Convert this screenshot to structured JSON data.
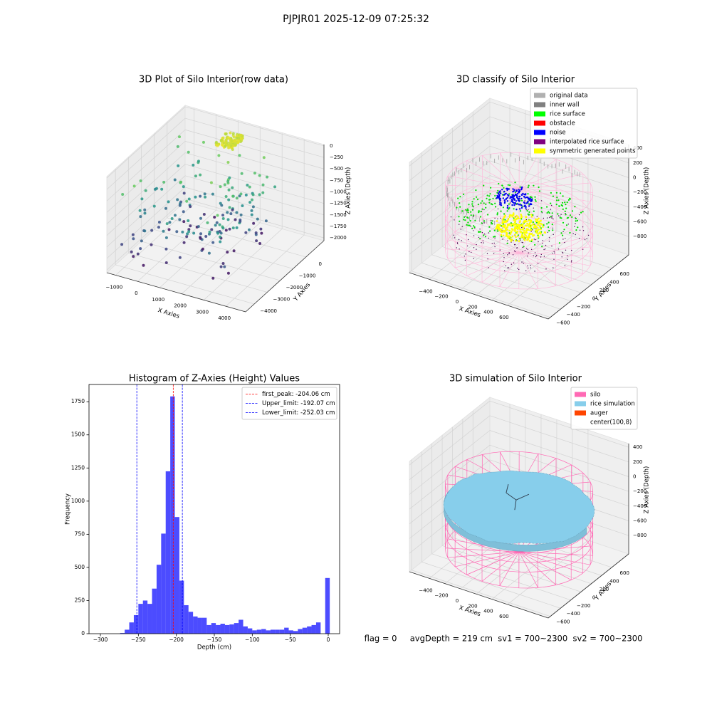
{
  "title": "PJPJR01 2025-12-09 07:25:32",
  "footer": "flag = 0     avgDepth = 219 cm  sv1 = 700~2300  sv2 = 700~2300",
  "chart_data": [
    {
      "type": "scatter3d",
      "title": "3D Plot of Silo Interior(row data)",
      "xlabel": "X Axies",
      "ylabel": "Y Axies",
      "zlabel": "Z Axies (Depth)",
      "xlim": [
        -1400,
        4900
      ],
      "ylim": [
        -4670,
        1390
      ],
      "zlim": [
        -2060,
        30
      ],
      "xticks": [
        {
          "value": -1000,
          "label": "−1000"
        },
        0,
        1000,
        2000,
        3000,
        4000
      ],
      "yticks": [
        {
          "value": -4000,
          "label": "−4000"
        },
        {
          "value": -3000,
          "label": "−3000"
        },
        {
          "value": -2000,
          "label": "−2000"
        },
        {
          "value": -1000,
          "label": "−1000"
        },
        0
      ],
      "zticks": [
        0,
        {
          "value": -250,
          "label": "−250"
        },
        {
          "value": -500,
          "label": "−500"
        },
        {
          "value": -750,
          "label": "−750"
        },
        {
          "value": -1000,
          "label": "−1000"
        },
        {
          "value": -1250,
          "label": "−1250"
        },
        {
          "value": -1500,
          "label": "−1500"
        },
        {
          "value": -1750,
          "label": "−1750"
        },
        {
          "value": -2000,
          "label": "−2000"
        }
      ]
    },
    {
      "type": "classified3d",
      "title": "3D classify of Silo Interior",
      "xlabel": "X Axies",
      "ylabel": "Y Axies",
      "zlabel": "Z Axies (Depth)",
      "xlim": [
        -655,
        1120
      ],
      "ylim": [
        -640,
        930
      ],
      "zlim": [
        -1050,
        450
      ],
      "xticks": [
        {
          "value": -400,
          "label": "−400"
        },
        {
          "value": -200,
          "label": "−200"
        },
        0,
        200,
        400,
        600
      ],
      "yticks": [
        {
          "value": -600,
          "label": "−600"
        },
        {
          "value": -400,
          "label": "−400"
        },
        {
          "value": -200,
          "label": "−200"
        },
        0,
        200,
        400,
        600
      ],
      "zticks": [
        {
          "value": -800,
          "label": "−800"
        },
        {
          "value": -600,
          "label": "−600"
        },
        {
          "value": -400,
          "label": "−400"
        },
        {
          "value": -200,
          "label": "−200"
        },
        0,
        200,
        400
      ],
      "legend_loc": "upper right",
      "legend": [
        {
          "name": "original data",
          "color": "#b0b0b0"
        },
        {
          "name": "inner wall",
          "color": "#808080"
        },
        {
          "name": "rice surface",
          "color": "#00ff00"
        },
        {
          "name": "obstacle",
          "color": "#ff0000"
        },
        {
          "name": "noise",
          "color": "#0000ff"
        },
        {
          "name": "interpolated rice surface",
          "color": "#800080"
        },
        {
          "name": "symmetric generated points",
          "color": "#ffff00"
        }
      ]
    },
    {
      "type": "histogram",
      "title": "Histogram of Z-Axies (Height) Values",
      "xlabel": "Depth (cm)",
      "ylabel": "Frequency",
      "color": "#0000ff",
      "alpha": 0.7,
      "bins": [
        -304,
        -298,
        -292,
        -286,
        -280,
        -274,
        -268,
        -262,
        -256,
        -250,
        -244,
        -238,
        -232,
        -226,
        -220,
        -214,
        -208,
        -202,
        -196,
        -190,
        -184,
        -178,
        -172,
        -166,
        -160,
        -154,
        -148,
        -142,
        -136,
        -130,
        -124,
        -118,
        -112,
        -106,
        -100,
        -94,
        -88,
        -82,
        -76,
        -70,
        -64,
        -58,
        -52,
        -46,
        -40,
        -34,
        -28,
        -22,
        -16,
        -10,
        -4,
        2
      ],
      "values": [
        0,
        0,
        0,
        0,
        0,
        5,
        30,
        85,
        140,
        225,
        250,
        225,
        340,
        520,
        755,
        1225,
        1790,
        880,
        400,
        215,
        165,
        130,
        120,
        120,
        65,
        80,
        65,
        75,
        65,
        70,
        80,
        105,
        55,
        40,
        25,
        30,
        35,
        25,
        30,
        30,
        30,
        45,
        25,
        20,
        35,
        45,
        55,
        65,
        85,
        0,
        420
      ],
      "xlim": [
        -315,
        15
      ],
      "ylim": [
        0,
        1880
      ],
      "xticks": [
        {
          "value": -300,
          "label": "−300"
        },
        {
          "value": -250,
          "label": "−250"
        },
        {
          "value": -200,
          "label": "−200"
        },
        {
          "value": -150,
          "label": "−150"
        },
        {
          "value": -100,
          "label": "−100"
        },
        {
          "value": -50,
          "label": "−50"
        },
        0
      ],
      "yticks": [
        0,
        250,
        500,
        750,
        1000,
        1250,
        1500,
        1750
      ],
      "legend_loc": "upper right",
      "vlines": [
        {
          "value": -204.06,
          "label": "first_peak: -204.06 cm",
          "color": "#ff0000"
        },
        {
          "value": -192.07,
          "label": "Upper_limit: -192.07 cm",
          "color": "#0000ff"
        },
        {
          "value": -252.03,
          "label": "Lower_limit: -252.03 cm",
          "color": "#0000ff"
        }
      ]
    },
    {
      "type": "surface3d",
      "title": "3D simulation of Silo Interior",
      "xlabel": "X Axies",
      "ylabel": "Y Axies",
      "zlabel": "Z Axies (Depth)",
      "xlim": [
        -655,
        1120
      ],
      "ylim": [
        -640,
        930
      ],
      "zlim": [
        -1050,
        450
      ],
      "xticks": [
        {
          "value": -400,
          "label": "−400"
        },
        {
          "value": -200,
          "label": "−200"
        },
        0,
        200,
        400,
        600
      ],
      "yticks": [
        {
          "value": -600,
          "label": "−600"
        },
        {
          "value": -400,
          "label": "−400"
        },
        {
          "value": -200,
          "label": "−200"
        },
        0,
        200,
        400,
        600
      ],
      "zticks": [
        {
          "value": -800,
          "label": "−800"
        },
        {
          "value": -600,
          "label": "−600"
        },
        {
          "value": -400,
          "label": "−400"
        },
        {
          "value": -200,
          "label": "−200"
        },
        0,
        200,
        400
      ],
      "legend_loc": "upper right",
      "legend": [
        {
          "name": "silo",
          "color": "#ff69b4"
        },
        {
          "name": "rice simulation",
          "color": "#87ceeb"
        },
        {
          "name": "auger",
          "color": "#ff4500"
        },
        {
          "name": "center(100,8)",
          "color": "#ffffff"
        }
      ]
    }
  ]
}
